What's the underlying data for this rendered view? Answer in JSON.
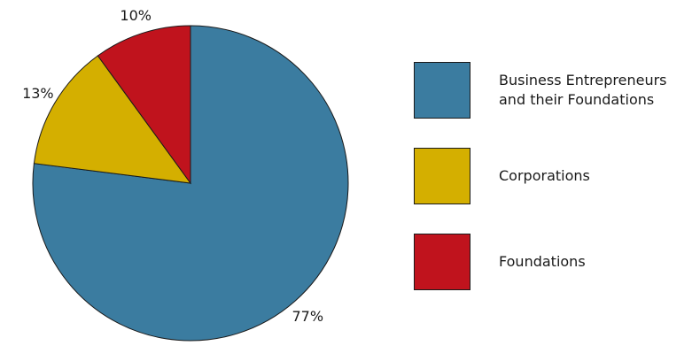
{
  "chart_data": {
    "type": "pie",
    "title": "",
    "slices": [
      {
        "label": "Business Entrepreneurs\nand their Foundations",
        "value": 77,
        "display": "77%",
        "color": "#3b7ca0"
      },
      {
        "label": "Corporations",
        "value": 13,
        "display": "13%",
        "color": "#d4af00"
      },
      {
        "label": "Foundations",
        "value": 10,
        "display": "10%",
        "color": "#c0131d"
      }
    ],
    "start": "top",
    "direction": "clockwise",
    "legend_position": "right"
  }
}
